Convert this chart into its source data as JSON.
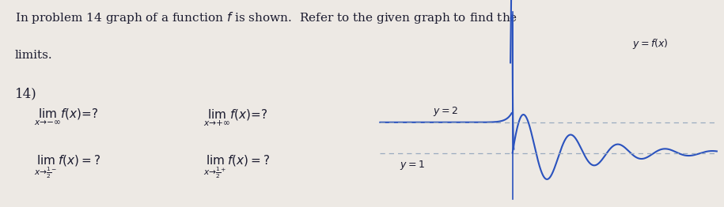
{
  "background_color": "#ede9e4",
  "text_color": "#1a1a2e",
  "line_color": "#2a52be",
  "dashed_color": "#9aabbf",
  "y2_label": "$y=2$",
  "y1_label": "$y=1$",
  "yfx_label": "$y=f(x)$",
  "font_size_main": 11,
  "font_size_math": 10,
  "xmin": -5.0,
  "xmax": 9.0,
  "ymin": -0.5,
  "ymax": 5.8
}
